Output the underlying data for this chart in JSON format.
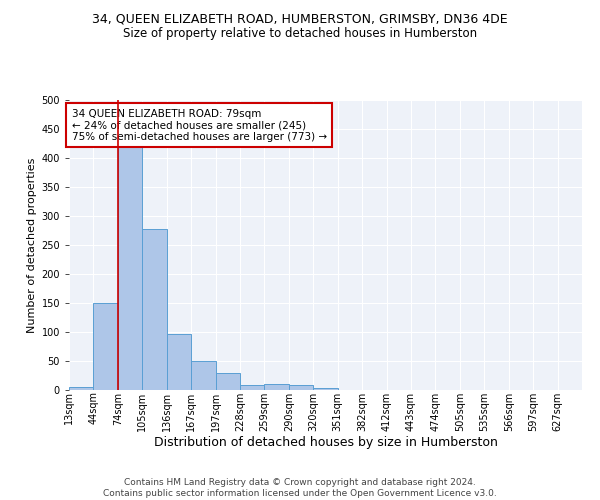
{
  "title_line1": "34, QUEEN ELIZABETH ROAD, HUMBERSTON, GRIMSBY, DN36 4DE",
  "title_line2": "Size of property relative to detached houses in Humberston",
  "xlabel": "Distribution of detached houses by size in Humberston",
  "ylabel": "Number of detached properties",
  "bin_labels": [
    "13sqm",
    "44sqm",
    "74sqm",
    "105sqm",
    "136sqm",
    "167sqm",
    "197sqm",
    "228sqm",
    "259sqm",
    "290sqm",
    "320sqm",
    "351sqm",
    "382sqm",
    "412sqm",
    "443sqm",
    "474sqm",
    "505sqm",
    "535sqm",
    "566sqm",
    "597sqm",
    "627sqm"
  ],
  "bar_values": [
    5,
    150,
    420,
    278,
    97,
    50,
    29,
    8,
    10,
    8,
    4,
    0,
    0,
    0,
    0,
    0,
    0,
    0,
    0,
    0,
    0
  ],
  "bar_color": "#aec6e8",
  "bar_edge_color": "#5a9fd4",
  "property_line_x": 2,
  "property_line_color": "#cc0000",
  "annotation_line1": "34 QUEEN ELIZABETH ROAD: 79sqm",
  "annotation_line2": "← 24% of detached houses are smaller (245)",
  "annotation_line3": "75% of semi-detached houses are larger (773) →",
  "annotation_box_color": "#ffffff",
  "annotation_box_edge": "#cc0000",
  "ylim": [
    0,
    500
  ],
  "yticks": [
    0,
    50,
    100,
    150,
    200,
    250,
    300,
    350,
    400,
    450,
    500
  ],
  "footer_text": "Contains HM Land Registry data © Crown copyright and database right 2024.\nContains public sector information licensed under the Open Government Licence v3.0.",
  "background_color": "#eef2f9",
  "grid_color": "#ffffff",
  "title1_fontsize": 9,
  "title2_fontsize": 8.5,
  "xlabel_fontsize": 9,
  "ylabel_fontsize": 8,
  "annotation_fontsize": 7.5,
  "footer_fontsize": 6.5,
  "tick_fontsize": 7
}
